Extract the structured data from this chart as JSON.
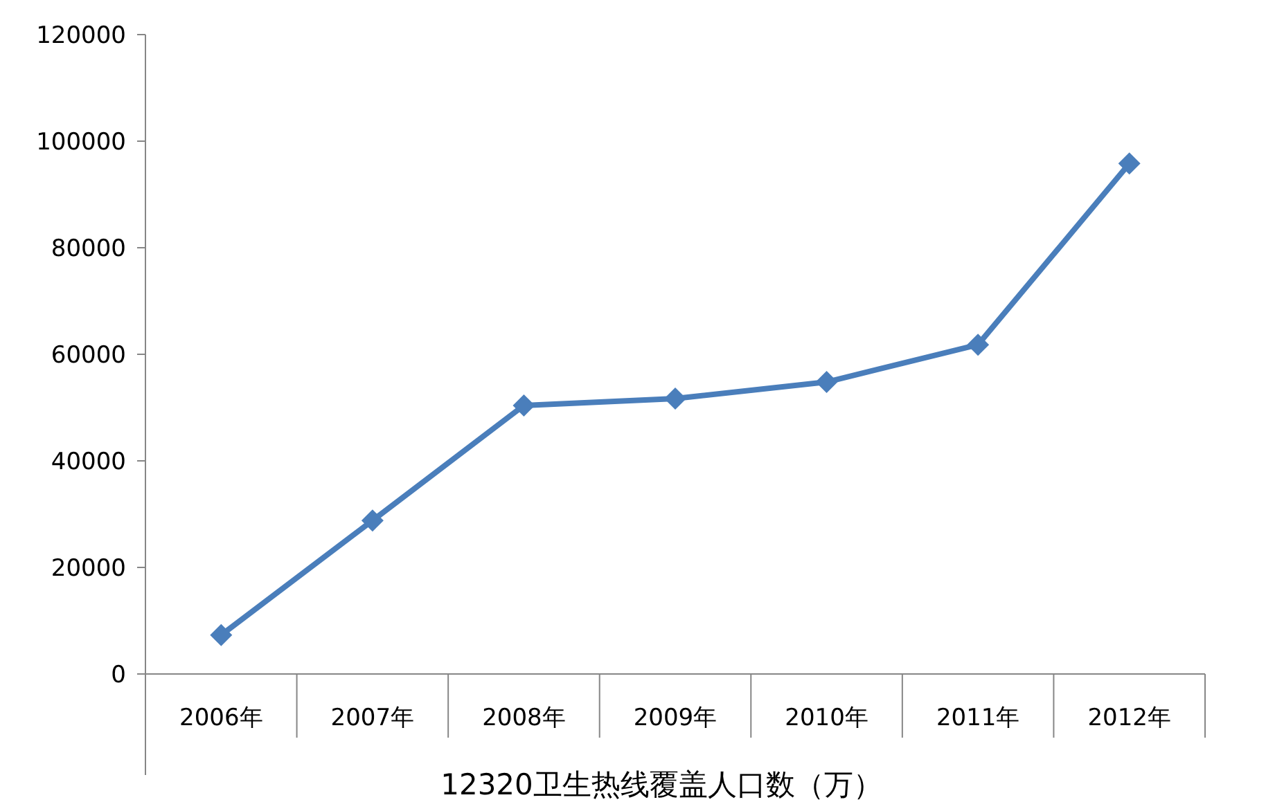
{
  "chart_data": {
    "type": "line",
    "xlabel": "12320卫生热线覆盖人口数（万）",
    "categories": [
      "2006年",
      "2007年",
      "2008年",
      "2009年",
      "2010年",
      "2011年",
      "2012年"
    ],
    "values": [
      7300,
      28800,
      50400,
      51700,
      54800,
      61800,
      95800
    ],
    "color": "#4a7ebb",
    "marker": "diamond",
    "ylim": [
      0,
      120000
    ],
    "yticks": [
      0,
      20000,
      40000,
      60000,
      80000,
      100000,
      120000
    ],
    "grid": false
  }
}
